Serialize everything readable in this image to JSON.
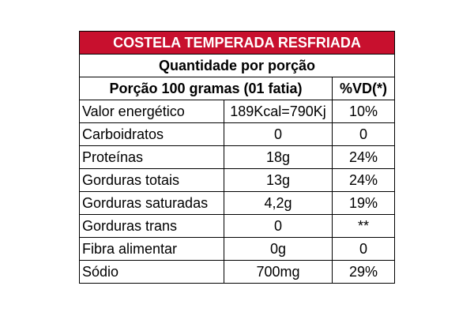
{
  "table": {
    "title": "COSTELA TEMPERADA RESFRIADA",
    "subtitle": "Quantidade por porção",
    "portion_label": "Porção 100 gramas (01 fatia)",
    "dv_label": "%VD(*)",
    "rows": [
      {
        "nutrient": "Valor energético",
        "amount": "189Kcal=790Kj",
        "dv": "10%"
      },
      {
        "nutrient": "Carboidratos",
        "amount": "0",
        "dv": "0"
      },
      {
        "nutrient": "Proteínas",
        "amount": "18g",
        "dv": "24%"
      },
      {
        "nutrient": "Gorduras totais",
        "amount": "13g",
        "dv": "24%"
      },
      {
        "nutrient": "Gorduras saturadas",
        "amount": "4,2g",
        "dv": "19%"
      },
      {
        "nutrient": "Gorduras trans",
        "amount": "0",
        "dv": "**"
      },
      {
        "nutrient": "Fibra alimentar",
        "amount": "0g",
        "dv": "0"
      },
      {
        "nutrient": "Sódio",
        "amount": "700mg",
        "dv": "29%"
      }
    ]
  },
  "colors": {
    "header_background": "#c8102e",
    "header_text": "#ffffff",
    "border": "#000000"
  }
}
